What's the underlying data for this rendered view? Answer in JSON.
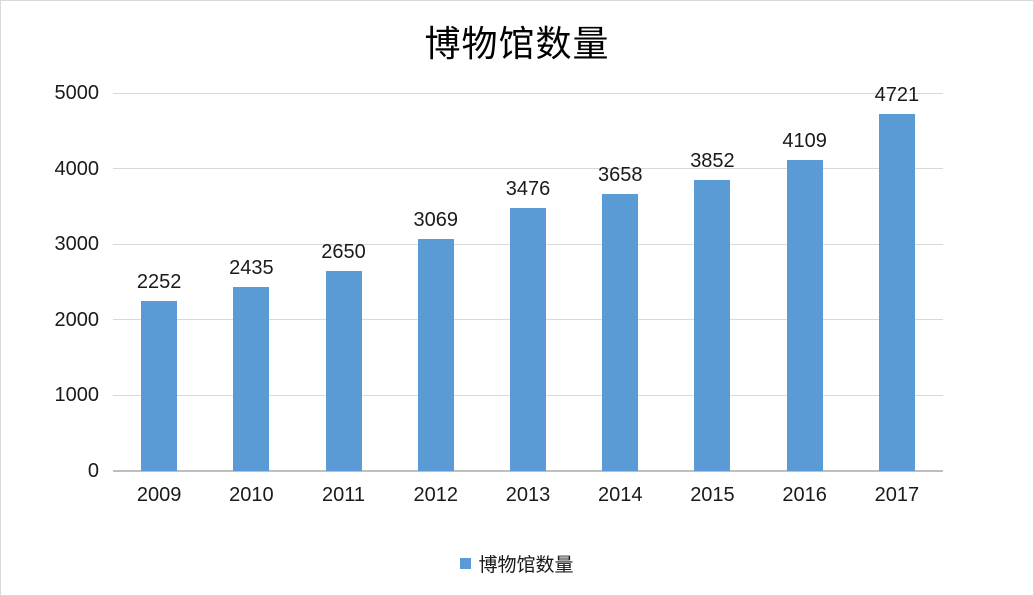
{
  "title": "博物馆数量",
  "legend": {
    "label": "博物馆数量",
    "swatch_color": "#5b9bd5"
  },
  "colors": {
    "bar": "#5b9bd5",
    "gridline": "#d9d9d9",
    "axis_line": "#bfbfbf",
    "text": "#1a1a1a"
  },
  "chart_data": {
    "type": "bar",
    "title": "博物馆数量",
    "series_name": "博物馆数量",
    "categories": [
      "2009",
      "2010",
      "2011",
      "2012",
      "2013",
      "2014",
      "2015",
      "2016",
      "2017"
    ],
    "values": [
      2252,
      2435,
      2650,
      3069,
      3476,
      3658,
      3852,
      4109,
      4721
    ],
    "data_labels": [
      "2252",
      "2435",
      "2650",
      "3069",
      "3476",
      "3658",
      "3852",
      "4109",
      "4721"
    ],
    "xlabel": "",
    "ylabel": "",
    "ylim": [
      0,
      5000
    ],
    "yticks": [
      0,
      1000,
      2000,
      3000,
      4000,
      5000
    ],
    "grid": true,
    "legend_position": "bottom"
  }
}
